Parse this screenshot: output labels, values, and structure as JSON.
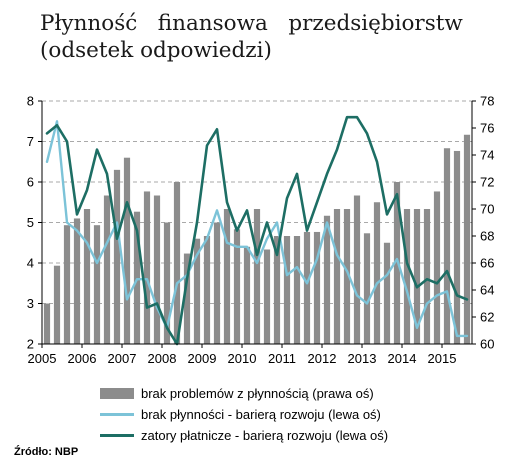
{
  "title": {
    "line1": "Płynność   finansowa   przedsiębiorstw",
    "line2": "(odsetek odpowiedzi)"
  },
  "source": "Źródło: NBP",
  "colors": {
    "bars": "#8c8c8c",
    "light_line": "#7cc3d8",
    "dark_line": "#1d6e64",
    "grid": "#555555"
  },
  "chart_data": {
    "type": "bar+line",
    "x_tick_labels": [
      "2005",
      "2006",
      "2007",
      "2008",
      "2009",
      "2010",
      "2011",
      "2012",
      "2013",
      "2014",
      "2015"
    ],
    "left_axis": {
      "ylim": [
        2,
        8
      ],
      "ticks": [
        "2",
        "3",
        "4",
        "5",
        "6",
        "7",
        "8"
      ]
    },
    "right_axis": {
      "ylim": [
        60,
        78
      ],
      "ticks": [
        "60",
        "62",
        "64",
        "66",
        "68",
        "70",
        "72",
        "74",
        "76",
        "78"
      ]
    },
    "grid": "dashed horizontal",
    "legend_position": "bottom",
    "x": [
      2005.0,
      2005.25,
      2005.5,
      2005.75,
      2006.0,
      2006.25,
      2006.5,
      2006.75,
      2007.0,
      2007.25,
      2007.5,
      2007.75,
      2008.0,
      2008.25,
      2008.5,
      2008.75,
      2009.0,
      2009.25,
      2009.5,
      2009.75,
      2010.0,
      2010.25,
      2010.5,
      2010.75,
      2011.0,
      2011.25,
      2011.5,
      2011.75,
      2012.0,
      2012.25,
      2012.5,
      2012.75,
      2013.0,
      2013.25,
      2013.5,
      2013.75,
      2014.0,
      2014.25,
      2014.5,
      2014.75,
      2015.0,
      2015.25,
      2015.5
    ],
    "series": [
      {
        "name": "brak problemów z płynnością (prawa oś)",
        "kind": "bar",
        "axis": "right",
        "values": [
          63.0,
          65.8,
          68.8,
          69.3,
          70.0,
          68.8,
          71.0,
          72.9,
          73.8,
          69.8,
          71.3,
          71.0,
          69.0,
          72.0,
          66.7,
          67.8,
          68.0,
          69.0,
          70.0,
          68.5,
          67.2,
          70.0,
          67.0,
          68.0,
          68.0,
          68.0,
          68.3,
          68.3,
          69.5,
          70.0,
          70.0,
          71.0,
          68.2,
          70.5,
          67.5,
          72.0,
          70.0,
          70.0,
          70.0,
          71.3,
          74.5,
          74.3,
          75.5
        ]
      },
      {
        "name": "brak płynności - barierą rozwoju (lewa oś)",
        "kind": "line",
        "axis": "left",
        "values": [
          6.5,
          7.5,
          5.0,
          4.8,
          4.5,
          4.0,
          4.5,
          5.0,
          3.1,
          3.6,
          3.6,
          2.9,
          2.4,
          3.5,
          3.7,
          4.2,
          4.6,
          5.3,
          4.5,
          4.4,
          4.4,
          4.0,
          4.6,
          5.0,
          3.7,
          3.9,
          3.5,
          4.1,
          5.0,
          4.2,
          3.8,
          3.2,
          3.0,
          3.5,
          3.7,
          4.1,
          3.3,
          2.4,
          3.0,
          3.2,
          3.3,
          2.2,
          2.2
        ]
      },
      {
        "name": "zatory płatnicze - barierą rozwoju (lewa oś)",
        "kind": "line",
        "axis": "left",
        "values": [
          7.2,
          7.4,
          7.0,
          5.2,
          5.8,
          6.8,
          6.2,
          4.6,
          5.5,
          4.8,
          2.9,
          3.0,
          2.4,
          2.0,
          3.6,
          5.0,
          6.9,
          7.3,
          5.5,
          4.8,
          5.3,
          4.2,
          5.0,
          4.2,
          5.6,
          6.2,
          4.8,
          5.5,
          6.2,
          6.8,
          7.6,
          7.6,
          7.2,
          6.5,
          5.2,
          5.7,
          4.0,
          3.4,
          3.6,
          3.5,
          3.8,
          3.2,
          3.1
        ]
      }
    ]
  }
}
